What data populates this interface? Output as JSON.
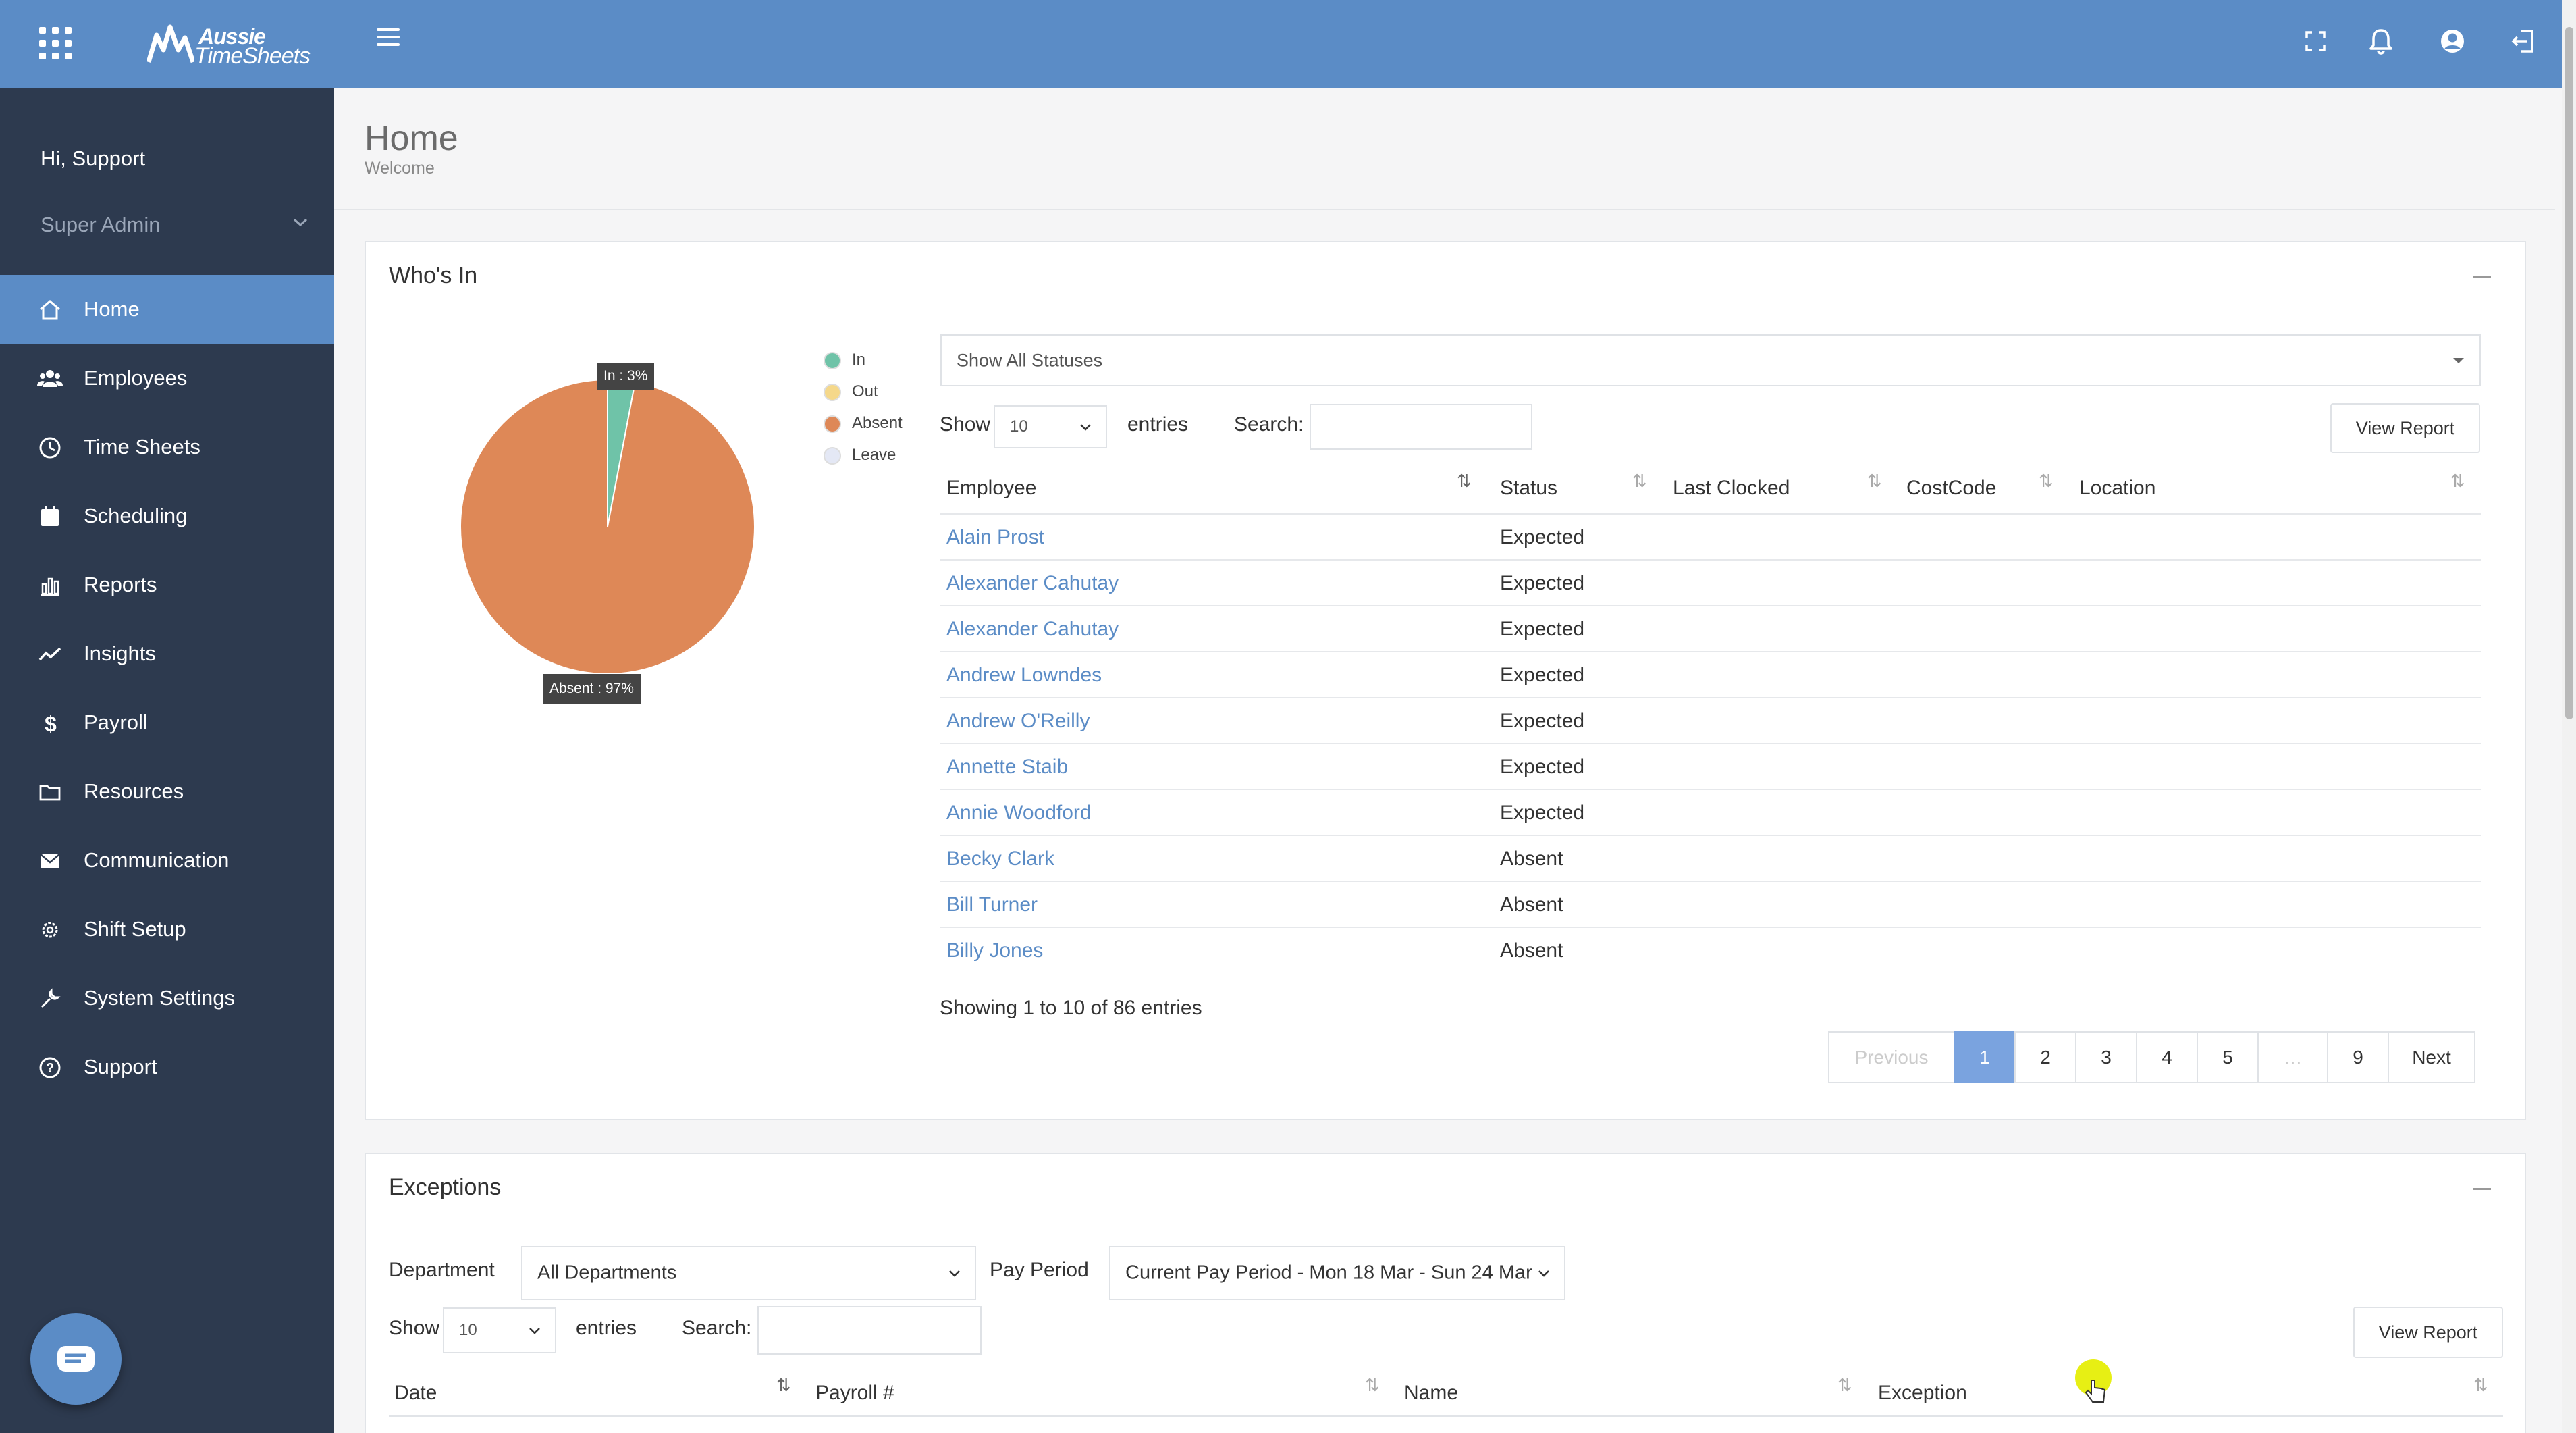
{
  "topbar": {
    "logo_line1": "Aussie",
    "logo_line2": "TimeSheets",
    "icons": [
      "apps-grid-icon",
      "menu-icon",
      "fullscreen-icon",
      "bell-icon",
      "user-icon",
      "logout-icon"
    ]
  },
  "sidebar": {
    "greeting": "Hi, Support",
    "role": "Super Admin",
    "items": [
      {
        "label": "Home",
        "icon": "home-icon",
        "active": true
      },
      {
        "label": "Employees",
        "icon": "users-icon"
      },
      {
        "label": "Time Sheets",
        "icon": "clock-icon"
      },
      {
        "label": "Scheduling",
        "icon": "calendar-icon"
      },
      {
        "label": "Reports",
        "icon": "bar-chart-icon"
      },
      {
        "label": "Insights",
        "icon": "trend-icon"
      },
      {
        "label": "Payroll",
        "icon": "dollar-icon"
      },
      {
        "label": "Resources",
        "icon": "folder-icon"
      },
      {
        "label": "Communication",
        "icon": "envelope-icon"
      },
      {
        "label": "Shift Setup",
        "icon": "gear-icon"
      },
      {
        "label": "System Settings",
        "icon": "wrench-icon"
      },
      {
        "label": "Support",
        "icon": "question-icon"
      }
    ]
  },
  "page": {
    "title": "Home",
    "subtitle": "Welcome"
  },
  "whos_in": {
    "title": "Who's In",
    "pie_label_in": "In : 3%",
    "pie_label_absent": "Absent : 97%",
    "legend": [
      {
        "label": "In",
        "color": "#6fc3a8"
      },
      {
        "label": "Out",
        "color": "#f5d88a"
      },
      {
        "label": "Absent",
        "color": "#de8857"
      },
      {
        "label": "Leave",
        "color": "#e4e8f5"
      }
    ],
    "status_filter": "Show All Statuses",
    "show_label": "Show",
    "entries_value": "10",
    "entries_label": "entries",
    "search_label": "Search:",
    "search_value": "",
    "view_report": "View Report",
    "columns": [
      "Employee",
      "Status",
      "Last Clocked",
      "CostCode",
      "Location"
    ],
    "rows": [
      {
        "employee": "Alain Prost",
        "status": "Expected"
      },
      {
        "employee": "Alexander Cahutay",
        "status": "Expected"
      },
      {
        "employee": "Alexander Cahutay",
        "status": "Expected"
      },
      {
        "employee": "Andrew Lowndes",
        "status": "Expected"
      },
      {
        "employee": "Andrew O'Reilly",
        "status": "Expected"
      },
      {
        "employee": "Annette Staib",
        "status": "Expected"
      },
      {
        "employee": "Annie Woodford",
        "status": "Expected"
      },
      {
        "employee": "Becky Clark",
        "status": "Absent"
      },
      {
        "employee": "Bill Turner",
        "status": "Absent"
      },
      {
        "employee": "Billy Jones",
        "status": "Absent"
      }
    ],
    "showing": "Showing 1 to 10 of 86 entries",
    "pagination": [
      "Previous",
      "1",
      "2",
      "3",
      "4",
      "5",
      "…",
      "9",
      "Next"
    ]
  },
  "chart_data": {
    "type": "pie",
    "categories": [
      "In",
      "Absent"
    ],
    "values": [
      3,
      97
    ],
    "colors": [
      "#6fc3a8",
      "#de8857"
    ]
  },
  "exceptions": {
    "title": "Exceptions",
    "department_label": "Department",
    "department_value": "All Departments",
    "pay_period_label": "Pay Period",
    "pay_period_value": "Current Pay Period - Mon 18 Mar - Sun 24 Mar",
    "show_label": "Show",
    "entries_value": "10",
    "entries_label": "entries",
    "search_label": "Search:",
    "search_value": "",
    "view_report": "View Report",
    "columns": [
      "Date",
      "Payroll #",
      "Name",
      "Exception"
    ]
  }
}
